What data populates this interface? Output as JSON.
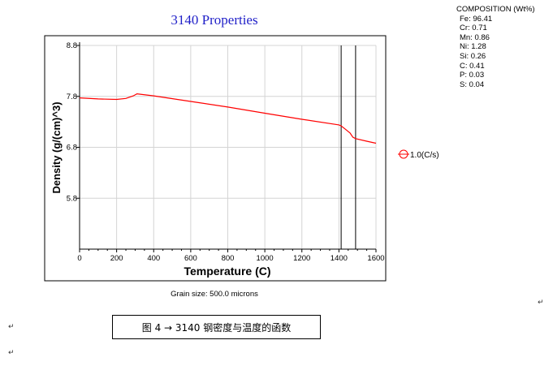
{
  "chart_data": {
    "type": "line",
    "title": "3140 Properties",
    "xlabel": "Temperature (C)",
    "ylabel": "Density (g/(cm)^3)",
    "xlim": [
      0,
      1600
    ],
    "ylim": [
      4.8,
      8.8
    ],
    "xticks": [
      0,
      200,
      400,
      600,
      800,
      1000,
      1200,
      1400,
      1600
    ],
    "yticks": [
      5.8,
      6.8,
      7.8,
      8.8
    ],
    "grid": true,
    "legend_position": "right",
    "vertical_lines_x": [
      1412,
      1490
    ],
    "series": [
      {
        "name": "1.0(C/s)",
        "color": "#ff0000",
        "x": [
          0,
          100,
          200,
          250,
          290,
          310,
          400,
          600,
          800,
          1000,
          1200,
          1400,
          1412,
          1430,
          1460,
          1475,
          1490,
          1550,
          1600
        ],
        "y": [
          7.77,
          7.75,
          7.74,
          7.76,
          7.81,
          7.85,
          7.81,
          7.7,
          7.59,
          7.47,
          7.35,
          7.24,
          7.22,
          7.17,
          7.08,
          7.0,
          6.97,
          6.92,
          6.88
        ]
      }
    ],
    "footnote": "Grain size: 500.0 microns"
  },
  "composition": {
    "title": "COMPOSITION (Wt%)",
    "items": [
      "Fe: 96.41",
      "Cr: 0.71",
      "Mn: 0.86",
      "Ni: 1.28",
      "Si: 0.26",
      "C: 0.41",
      "P: 0.03",
      "S: 0.04"
    ]
  },
  "caption": "图 4 → 3140 钢密度与温度的函数",
  "paragraph_mark": "↵"
}
